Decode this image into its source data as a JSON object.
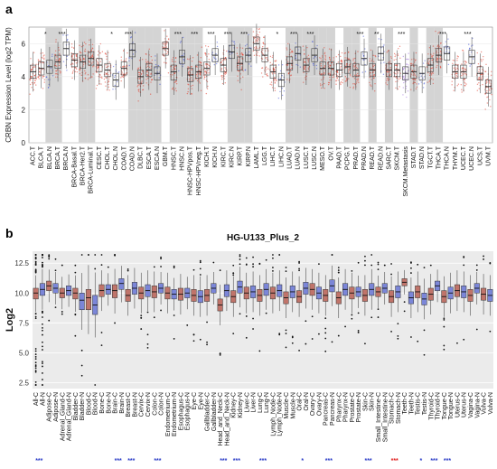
{
  "panel_a": {
    "letter": "a",
    "chart_data": {
      "type": "box",
      "ylabel": "CRBN Expression Level (log2 TPM)",
      "ylim": [
        0,
        7
      ],
      "yticks": [
        0,
        2,
        4,
        6
      ],
      "legend": "none",
      "grid": true,
      "shaded_columns": [
        2,
        3,
        6,
        7,
        12,
        13,
        14,
        15,
        17,
        18,
        19,
        20,
        24,
        25,
        26,
        31,
        32,
        33,
        34,
        35,
        36,
        38,
        39,
        41,
        43,
        46,
        48,
        49
      ],
      "series_colors": {
        "tumor": "#e03a2a",
        "normal": "#3c4fd6",
        "paired_normal": "#9a6ad8"
      },
      "categories": [
        "ACC.T",
        "BLCA.T",
        "BLCA.N",
        "BRCA.T",
        "BRCA.N",
        "BRCA-Basal.T",
        "BRCA-Her2.T",
        "BRCA-Luminal.T",
        "CESC.T",
        "CHOL.T",
        "CHOL.N",
        "COAD.T",
        "COAD.N",
        "DLBC.T",
        "ESCA.T",
        "ESCA.N",
        "GBM.T",
        "HNSC.T",
        "HNSC.N",
        "HNSC-HPVpos.T",
        "HNSC-HPVneg.T",
        "KICH.T",
        "KICH.N",
        "KIRC.T",
        "KIRC.N",
        "KIRP.T",
        "KIRP.N",
        "LAML.T",
        "LGG.T",
        "LIHC.T",
        "LIHC.N",
        "LUAD.T",
        "LUAD.N",
        "LUSC.T",
        "LUSC.N",
        "MESO.T",
        "OV.T",
        "PAAD.T",
        "PCPG.T",
        "PRAD.T",
        "PRAD.N",
        "READ.T",
        "READ.N",
        "SARC.T",
        "SKCM.T",
        "SKCM.Metastasis",
        "STAD.T",
        "STAD.N",
        "TGCT.T",
        "THCA.T",
        "THCA.N",
        "THYM.T",
        "UCEC.T",
        "UCEC.N",
        "UCS.T",
        "UVM.T"
      ],
      "groups": [
        "T",
        "T",
        "N",
        "T",
        "N",
        "T",
        "T",
        "T",
        "T",
        "T",
        "N",
        "T",
        "N",
        "T",
        "T",
        "N",
        "T",
        "T",
        "N",
        "T",
        "T",
        "T",
        "N",
        "T",
        "N",
        "T",
        "N",
        "T",
        "T",
        "T",
        "N",
        "T",
        "N",
        "T",
        "N",
        "T",
        "T",
        "T",
        "T",
        "T",
        "N",
        "T",
        "N",
        "T",
        "T",
        "T",
        "T",
        "N",
        "T",
        "T",
        "N",
        "T",
        "T",
        "N",
        "T",
        "T"
      ],
      "medians": [
        4.3,
        4.5,
        4.6,
        4.9,
        5.7,
        5.0,
        4.9,
        5.1,
        4.7,
        4.4,
        3.8,
        4.5,
        5.6,
        4.0,
        4.4,
        4.2,
        5.7,
        4.3,
        5.2,
        4.1,
        4.3,
        4.5,
        5.3,
        4.7,
        5.5,
        4.8,
        5.3,
        6.0,
        5.3,
        4.3,
        3.8,
        4.8,
        5.4,
        4.7,
        5.3,
        4.5,
        4.5,
        4.4,
        4.6,
        4.4,
        5.1,
        4.4,
        5.4,
        4.4,
        4.4,
        4.2,
        4.3,
        4.2,
        4.7,
        5.3,
        5.4,
        4.3,
        4.3,
        5.2,
        4.2,
        3.4
      ],
      "q1": [
        3.9,
        4.1,
        4.2,
        4.5,
        5.3,
        4.6,
        4.5,
        4.7,
        4.3,
        4.0,
        3.4,
        4.1,
        5.2,
        3.6,
        4.0,
        3.8,
        5.3,
        3.8,
        4.8,
        3.7,
        3.9,
        4.1,
        4.9,
        4.3,
        5.1,
        4.4,
        4.9,
        5.6,
        4.9,
        3.9,
        3.4,
        4.4,
        5.0,
        4.3,
        4.9,
        4.1,
        4.1,
        4.0,
        4.2,
        4.0,
        4.7,
        4.0,
        5.0,
        4.0,
        4.0,
        3.8,
        3.9,
        3.8,
        4.3,
        4.9,
        5.0,
        3.9,
        3.9,
        4.8,
        3.8,
        3.0
      ],
      "q3": [
        4.7,
        4.9,
        5.0,
        5.3,
        6.1,
        5.4,
        5.3,
        5.5,
        5.1,
        4.8,
        4.2,
        4.9,
        6.0,
        4.4,
        4.8,
        4.6,
        6.1,
        4.7,
        5.6,
        4.5,
        4.7,
        4.9,
        5.7,
        5.1,
        5.9,
        5.2,
        5.7,
        6.4,
        5.7,
        4.7,
        4.2,
        5.2,
        5.8,
        5.1,
        5.7,
        4.9,
        4.9,
        4.8,
        5.0,
        4.8,
        5.5,
        4.8,
        5.8,
        4.8,
        4.8,
        4.6,
        4.7,
        4.6,
        5.1,
        5.7,
        5.8,
        4.7,
        4.7,
        5.6,
        4.6,
        3.8
      ],
      "significance": [
        "",
        "",
        "*",
        "",
        "***",
        "",
        "",
        "",
        "",
        "",
        "*",
        "",
        "***",
        "",
        "",
        "",
        "",
        "",
        "***",
        "",
        "***",
        "",
        "***",
        "",
        "***",
        "",
        "***",
        "",
        "",
        "",
        "*",
        "",
        "***",
        "",
        "***",
        "",
        "",
        "",
        "",
        "",
        "***",
        "",
        "**",
        "",
        "",
        "***",
        "",
        "",
        "",
        "",
        "***",
        "",
        "",
        "***",
        "",
        ""
      ]
    }
  },
  "panel_b": {
    "letter": "b",
    "chart_data": {
      "type": "box",
      "title": "HG-U133_Plus_2",
      "ylabel": "Log2",
      "ylim": [
        2,
        13.5
      ],
      "yticks": [
        2.5,
        5.0,
        7.5,
        10.0,
        12.5
      ],
      "ytick_labels": [
        "2.5",
        "5.0",
        "7.5",
        "10.0",
        "12.5"
      ],
      "legend": "none",
      "grid": true,
      "series_colors": {
        "cancer": "#c0746a",
        "normal": "#7b86d8"
      },
      "categories": [
        "All-C",
        "All-N",
        "Adipose-C",
        "Adipose-N",
        "Adrenal_Gland-C",
        "Adrenal_Gland-N",
        "Bladder-C",
        "Bladder-N",
        "Blood-C",
        "Blood-N",
        "Bone-C",
        "Bone-N",
        "Brain-C",
        "Brain-N",
        "Breast-C",
        "Breast-N",
        "Cervix-C",
        "Cervix-N",
        "Colon-C",
        "Colon-N",
        "Endometrium-C",
        "Endometrium-N",
        "Esophagus-C",
        "Esophagus-N",
        "Eye-C",
        "Eye-N",
        "Gallbladder-C",
        "Gallbladder-N",
        "Head_and_Neck-C",
        "Head_and_Neck-N",
        "Kidney-C",
        "Kidney-N",
        "Liver-C",
        "Liver-N",
        "Lung-C",
        "Lung-N",
        "Lymph_Node-C",
        "Lymph_Node-N",
        "Muscle-C",
        "Muscle-N",
        "Oral-C",
        "Oral-N",
        "Ovary-C",
        "Ovary-N",
        "Pancreas-C",
        "Pancreas-N",
        "Pharynx-C",
        "Pharynx-N",
        "Prostate-C",
        "Prostate-N",
        "Skin-C",
        "Skin-N",
        "Small_Intestine-C",
        "Small_Intestine-N",
        "Stomach-C",
        "Stomach-N",
        "Teeth-C",
        "Teeth-N",
        "Testis-C",
        "Testis-N",
        "Thyroid-C",
        "Thyroid-N",
        "Tongue-C",
        "Tongue-N",
        "Uterus-C",
        "Uterus-N",
        "Vagina-C",
        "Vagina-N",
        "Vulva-C",
        "Vulva-N"
      ],
      "groups": [
        "C",
        "N",
        "C",
        "N",
        "C",
        "N",
        "C",
        "N",
        "C",
        "N",
        "C",
        "N",
        "C",
        "N",
        "C",
        "N",
        "C",
        "N",
        "C",
        "N",
        "C",
        "N",
        "C",
        "N",
        "C",
        "N",
        "C",
        "N",
        "C",
        "N",
        "C",
        "N",
        "C",
        "N",
        "C",
        "N",
        "C",
        "N",
        "C",
        "N",
        "C",
        "N",
        "C",
        "N",
        "C",
        "N",
        "C",
        "N",
        "C",
        "N",
        "C",
        "N",
        "C",
        "N",
        "C",
        "N",
        "C",
        "N",
        "C",
        "N",
        "C",
        "N",
        "C",
        "N",
        "C",
        "N",
        "C",
        "N",
        "C",
        "N"
      ],
      "medians": [
        10.0,
        10.3,
        10.6,
        10.4,
        10.0,
        10.2,
        10.0,
        9.4,
        9.6,
        9.0,
        10.2,
        10.3,
        10.2,
        10.8,
        9.8,
        10.4,
        10.0,
        10.2,
        10.1,
        10.4,
        10.0,
        9.9,
        9.9,
        10.0,
        9.8,
        9.7,
        9.8,
        10.4,
        9.0,
        10.2,
        9.7,
        10.5,
        10.0,
        10.1,
        9.8,
        10.3,
        10.0,
        10.2,
        9.6,
        10.1,
        9.7,
        10.4,
        10.3,
        10.0,
        9.8,
        10.6,
        9.6,
        10.3,
        10.0,
        10.1,
        9.8,
        10.3,
        10.1,
        10.4,
        9.7,
        10.1,
        10.9,
        9.6,
        10.1,
        9.5,
        9.9,
        10.6,
        9.7,
        10.0,
        10.2,
        10.1,
        9.8,
        10.4,
        9.9,
        9.8
      ],
      "q1": [
        9.5,
        9.8,
        10.2,
        10.0,
        9.6,
        9.8,
        9.5,
        8.6,
        8.6,
        8.2,
        9.7,
        9.9,
        9.6,
        10.3,
        9.3,
        9.9,
        9.5,
        9.7,
        9.6,
        10.0,
        9.5,
        9.5,
        9.4,
        9.6,
        9.3,
        9.2,
        9.3,
        10.0,
        8.5,
        9.7,
        9.2,
        10.0,
        9.5,
        9.6,
        9.3,
        9.8,
        9.5,
        9.7,
        9.1,
        9.6,
        9.2,
        9.9,
        9.8,
        9.5,
        9.3,
        10.1,
        9.1,
        9.8,
        9.5,
        9.7,
        9.3,
        9.8,
        9.7,
        10.0,
        9.2,
        9.6,
        10.6,
        9.1,
        9.6,
        9.0,
        9.4,
        10.2,
        9.2,
        9.5,
        9.7,
        9.6,
        9.3,
        10.0,
        9.4,
        9.3
      ],
      "q3": [
        10.4,
        10.8,
        11.0,
        10.8,
        10.4,
        10.6,
        10.4,
        10.0,
        10.3,
        9.8,
        10.7,
        10.7,
        10.7,
        11.2,
        10.3,
        10.9,
        10.5,
        10.7,
        10.6,
        10.8,
        10.5,
        10.3,
        10.4,
        10.4,
        10.3,
        10.2,
        10.3,
        10.8,
        9.5,
        10.7,
        10.2,
        11.0,
        10.5,
        10.6,
        10.3,
        10.8,
        10.5,
        10.7,
        10.1,
        10.6,
        10.2,
        10.9,
        10.8,
        10.5,
        10.3,
        11.1,
        10.1,
        10.8,
        10.5,
        10.5,
        10.3,
        10.8,
        10.5,
        10.8,
        10.2,
        10.6,
        11.2,
        10.1,
        10.6,
        10.0,
        10.4,
        11.0,
        10.2,
        10.5,
        10.7,
        10.6,
        10.3,
        10.8,
        10.4,
        10.3
      ],
      "significance": [
        "***",
        "",
        "",
        "",
        "",
        "",
        "",
        "",
        "",
        "",
        "",
        "",
        "***",
        "",
        "***",
        "",
        "",
        "",
        "***",
        "",
        "",
        "",
        "",
        "",
        "",
        "",
        "",
        "",
        "***",
        "",
        "***",
        "",
        "",
        "",
        "***",
        "",
        "",
        "",
        "",
        "",
        "*",
        "",
        "",
        "",
        "***",
        "",
        "",
        "",
        "",
        "",
        "***",
        "",
        "",
        "",
        "***",
        "",
        "",
        "",
        "*",
        "",
        "***",
        "",
        "***",
        "",
        "",
        "",
        "",
        "",
        "",
        ""
      ],
      "significance_colors": {
        "up": "#2e3fc8",
        "down": "#e02020"
      },
      "significance_direction": [
        "up",
        "",
        "",
        "",
        "",
        "",
        "",
        "",
        "",
        "",
        "",
        "",
        "up",
        "",
        "up",
        "",
        "",
        "",
        "up",
        "",
        "",
        "",
        "",
        "",
        "",
        "",
        "",
        "",
        "up",
        "",
        "up",
        "",
        "",
        "",
        "up",
        "",
        "",
        "",
        "",
        "",
        "up",
        "",
        "",
        "",
        "up",
        "",
        "",
        "",
        "",
        "",
        "up",
        "",
        "",
        "",
        "down",
        "",
        "",
        "",
        "up",
        "",
        "up",
        "",
        "up",
        "",
        "",
        "",
        "",
        "",
        "",
        ""
      ]
    }
  }
}
